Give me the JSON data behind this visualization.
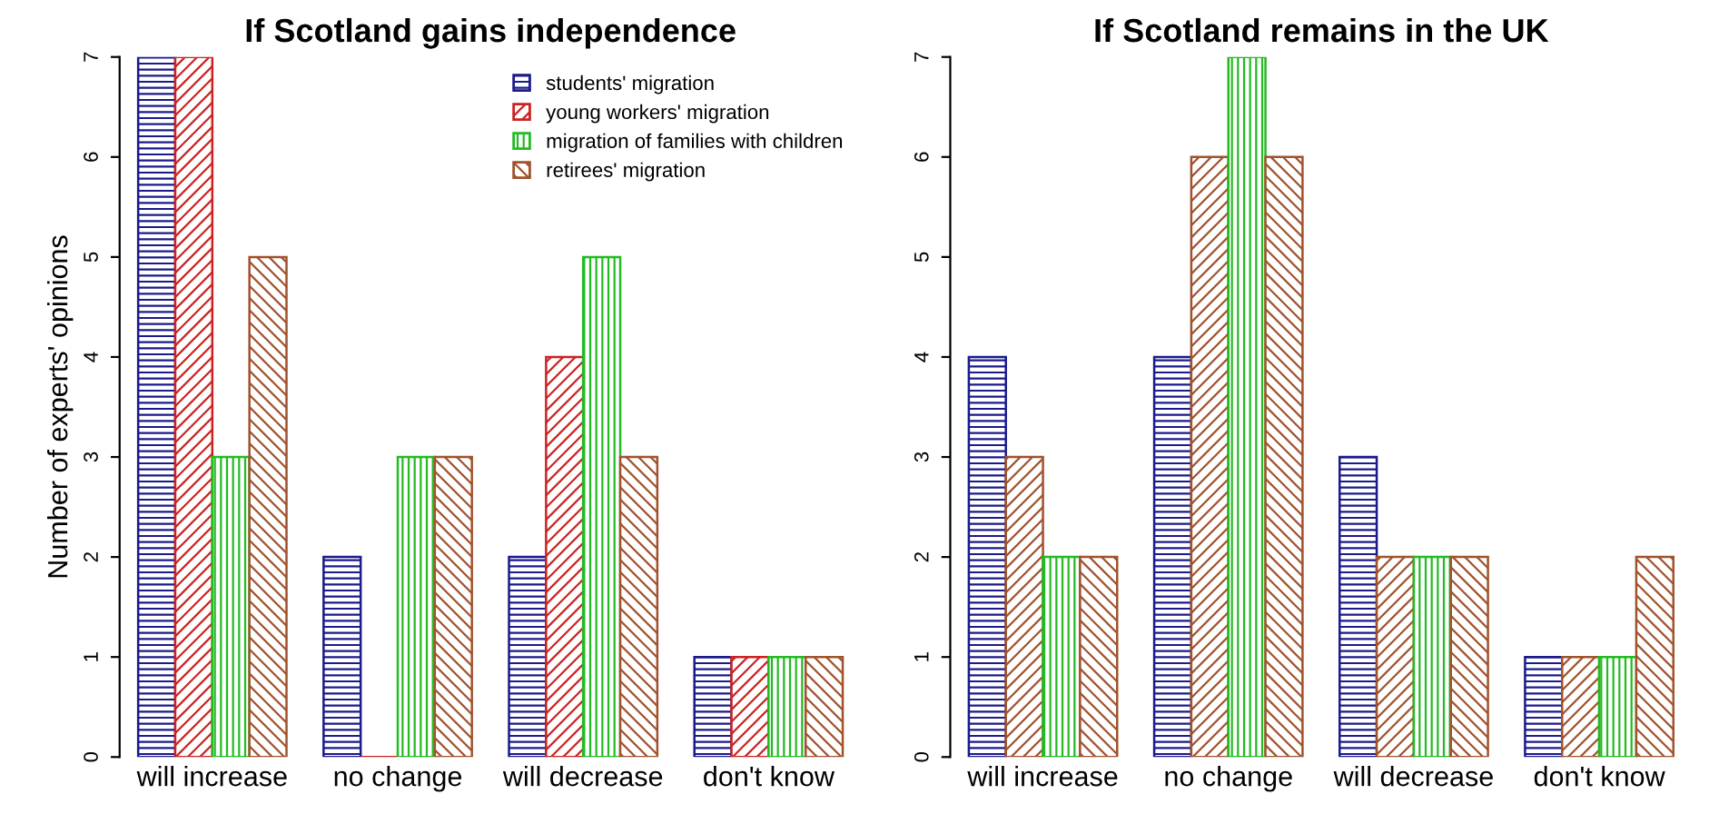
{
  "chart_data": [
    {
      "type": "bar",
      "title": "If Scotland gains independence",
      "ylabel": "Number of experts' opinions",
      "categories": [
        "will increase",
        "no change",
        "will decrease",
        "don't know"
      ],
      "ylim": [
        0,
        7
      ],
      "yticks": [
        0,
        1,
        2,
        3,
        4,
        5,
        6,
        7
      ],
      "legend": "top right",
      "grid": false,
      "series": [
        {
          "name": "students' migration",
          "color": "#1a1a8c",
          "values": [
            7,
            2,
            2,
            1
          ]
        },
        {
          "name": "young workers' migration",
          "color": "#cc2222",
          "values": [
            7,
            0,
            4,
            1
          ]
        },
        {
          "name": "migration of families with children",
          "color": "#22bb22",
          "values": [
            3,
            3,
            5,
            1
          ]
        },
        {
          "name": "retirees' migration",
          "color": "#a0522d",
          "values": [
            5,
            3,
            3,
            1
          ]
        }
      ]
    },
    {
      "type": "bar",
      "title": "If Scotland remains in the UK",
      "categories": [
        "will increase",
        "no change",
        "will decrease",
        "don't know"
      ],
      "ylim": [
        0,
        7
      ],
      "yticks": [
        0,
        1,
        2,
        3,
        4,
        5,
        6,
        7
      ],
      "legend": false,
      "grid": false,
      "series": [
        {
          "color": "#1a1a8c",
          "values": [
            4,
            4,
            3,
            1
          ]
        },
        {
          "color": "#a0522d",
          "values": [
            3,
            6,
            2,
            1
          ]
        },
        {
          "color": "#22bb22",
          "values": [
            2,
            7,
            2,
            1
          ]
        },
        {
          "color": "#a0522d",
          "values": [
            2,
            6,
            2,
            2
          ]
        }
      ]
    }
  ]
}
